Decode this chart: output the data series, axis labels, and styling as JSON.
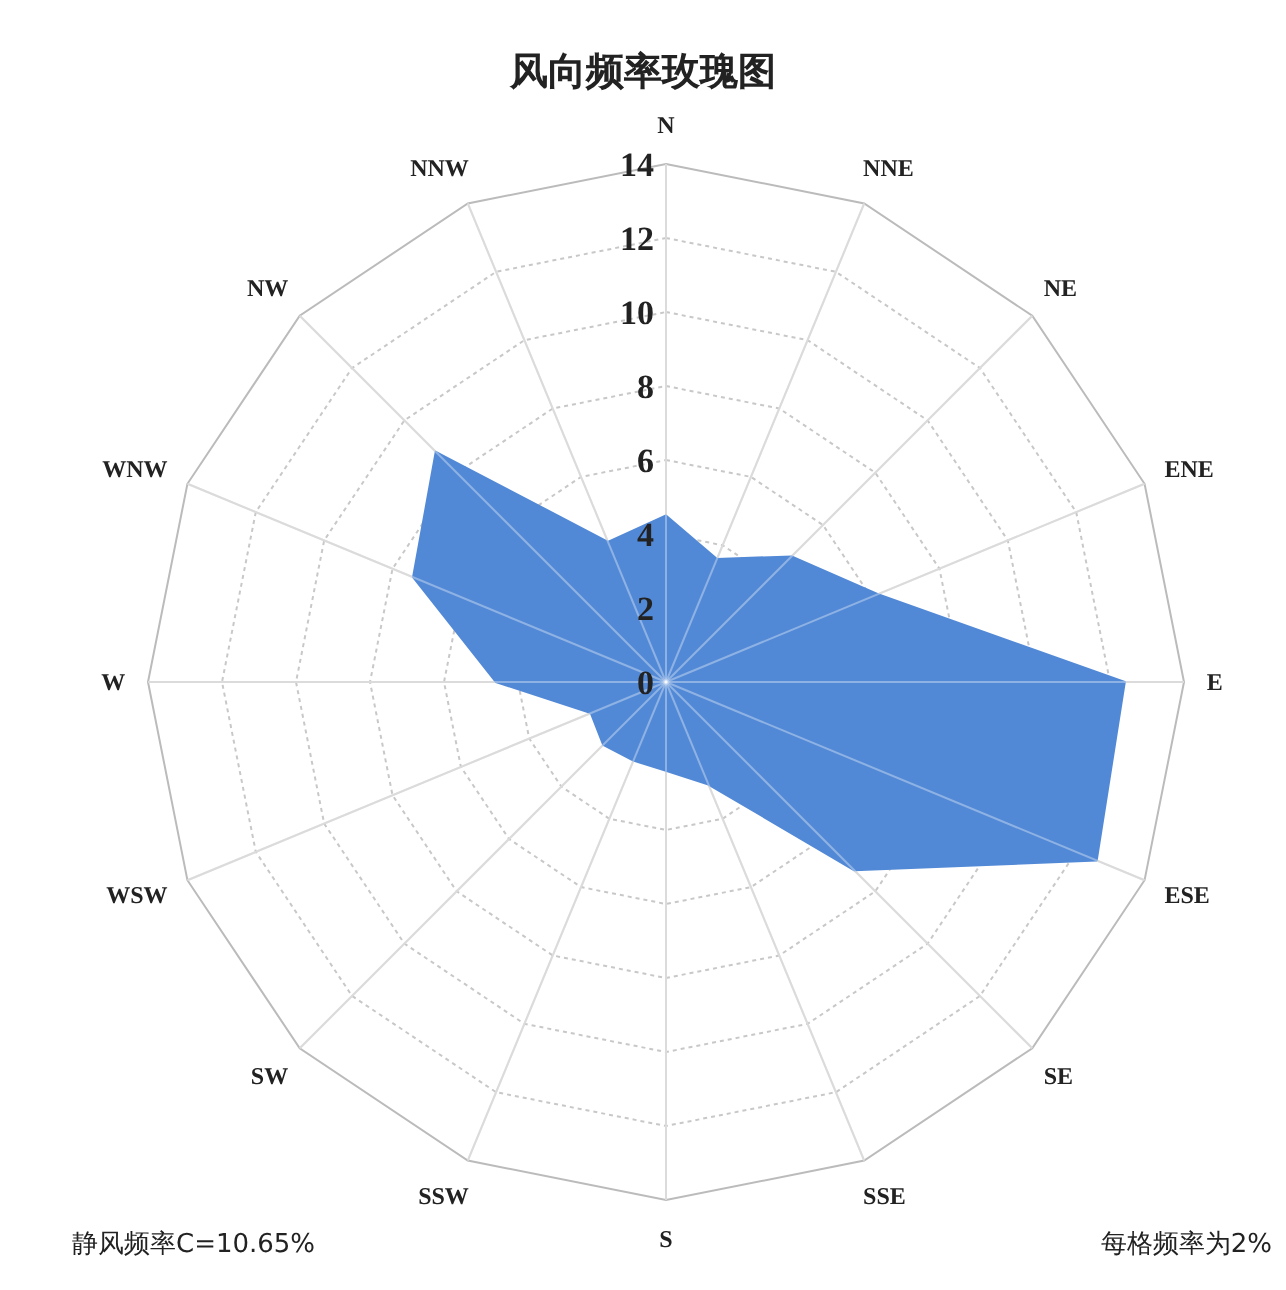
{
  "chart_data": {
    "type": "radar",
    "title": "风向频率玫瑰图",
    "categories": [
      "N",
      "NNE",
      "NE",
      "ENE",
      "E",
      "ESE",
      "SE",
      "SSE",
      "S",
      "SSW",
      "SW",
      "WSW",
      "W",
      "WNW",
      "NW",
      "NNW"
    ],
    "series": [
      {
        "color": "#5289d6",
        "values": [
          4.5,
          3.6,
          4.8,
          6.2,
          12.4,
          12.6,
          7.2,
          3.0,
          2.4,
          2.3,
          2.4,
          2.2,
          4.6,
          7.4,
          8.8,
          4.1
        ]
      }
    ],
    "ylim": [
      0,
      14
    ],
    "yticks": [
      0,
      2,
      4,
      6,
      8,
      10,
      12,
      14
    ],
    "grid": true,
    "annotations": [
      "静风频率C=10.65%",
      "每格频率为2%"
    ]
  }
}
